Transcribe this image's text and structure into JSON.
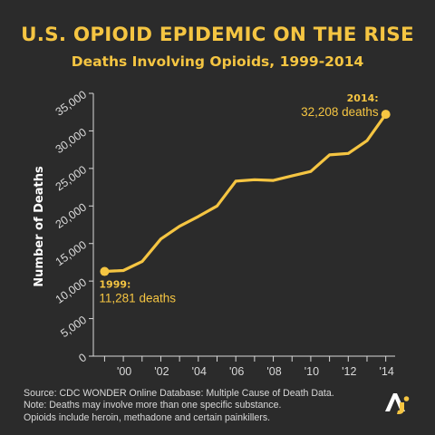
{
  "title": "U.S. OPIOID EPIDEMIC ON THE RISE",
  "subtitle": "Deaths Involving Opioids, 1999-2014",
  "colors": {
    "background": "#2b2b2b",
    "accent": "#f5c542",
    "axis": "#d9d9d9",
    "text": "#d9d9d9"
  },
  "chart_data": {
    "type": "line",
    "title": "Deaths Involving Opioids, 1999-2014",
    "xlabel": "",
    "ylabel": "Number of Deaths",
    "x": [
      1999,
      2000,
      2001,
      2002,
      2003,
      2004,
      2005,
      2006,
      2007,
      2008,
      2009,
      2010,
      2011,
      2012,
      2013,
      2014
    ],
    "series": [
      {
        "values": [
          11281,
          11400,
          12600,
          15600,
          17300,
          18600,
          20000,
          23300,
          23500,
          23400,
          24000,
          24600,
          26800,
          27000,
          28700,
          32208
        ]
      }
    ],
    "ylim": [
      0,
      35000
    ],
    "yticks": [
      0,
      5000,
      10000,
      15000,
      20000,
      25000,
      30000,
      35000
    ],
    "ytick_labels": [
      "0",
      "5,000",
      "10,000",
      "15,000",
      "20,000",
      "25,000",
      "30,000",
      "35,000"
    ],
    "xticks": [
      2000,
      2002,
      2004,
      2006,
      2008,
      2010,
      2012,
      2014
    ],
    "xtick_labels": [
      "'00",
      "'02",
      "'04",
      "'06",
      "'08",
      "'10",
      "'12",
      "'14"
    ],
    "grid": false,
    "annotations": [
      {
        "x": 1999,
        "y": 11281,
        "year_label": "1999:",
        "value_label": "11,281 deaths"
      },
      {
        "x": 2014,
        "y": 32208,
        "year_label": "2014:",
        "value_label": "32,208 deaths"
      }
    ]
  },
  "footer": {
    "line1": "Source: CDC WONDER Online Database: Multiple Cause of Death Data.",
    "line2": "Note: Deaths may involve more than one specific substance.",
    "line3": "Opioids include heroin, methadone and certain painkillers."
  },
  "logo": {
    "icon": "aj-logo-icon"
  }
}
